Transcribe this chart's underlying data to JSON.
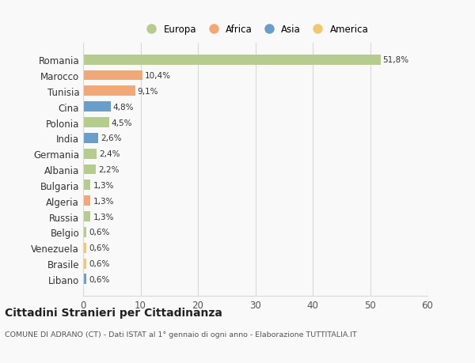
{
  "categories": [
    "Romania",
    "Marocco",
    "Tunisia",
    "Cina",
    "Polonia",
    "India",
    "Germania",
    "Albania",
    "Bulgaria",
    "Algeria",
    "Russia",
    "Belgio",
    "Venezuela",
    "Brasile",
    "Libano"
  ],
  "values": [
    51.8,
    10.4,
    9.1,
    4.8,
    4.5,
    2.6,
    2.4,
    2.2,
    1.3,
    1.3,
    1.3,
    0.6,
    0.6,
    0.6,
    0.6
  ],
  "labels": [
    "51,8%",
    "10,4%",
    "9,1%",
    "4,8%",
    "4,5%",
    "2,6%",
    "2,4%",
    "2,2%",
    "1,3%",
    "1,3%",
    "1,3%",
    "0,6%",
    "0,6%",
    "0,6%",
    "0,6%"
  ],
  "colors": [
    "#b5cc8e",
    "#f0a878",
    "#f0a878",
    "#6a9ec9",
    "#b5cc8e",
    "#6a9ec9",
    "#b5cc8e",
    "#b5cc8e",
    "#b5cc8e",
    "#f0a878",
    "#b5cc8e",
    "#b5cc8e",
    "#f0c870",
    "#f0c870",
    "#6a9ec9"
  ],
  "legend_labels": [
    "Europa",
    "Africa",
    "Asia",
    "America"
  ],
  "legend_colors": [
    "#b5cc8e",
    "#f0a878",
    "#6a9ec9",
    "#f0c870"
  ],
  "title": "Cittadini Stranieri per Cittadinanza",
  "subtitle": "COMUNE DI ADRANO (CT) - Dati ISTAT al 1° gennaio di ogni anno - Elaborazione TUTTITALIA.IT",
  "xlim": [
    0,
    60
  ],
  "xticks": [
    0,
    10,
    20,
    30,
    40,
    50,
    60
  ],
  "bg_color": "#f9f9f9",
  "grid_color": "#d8d8d8"
}
